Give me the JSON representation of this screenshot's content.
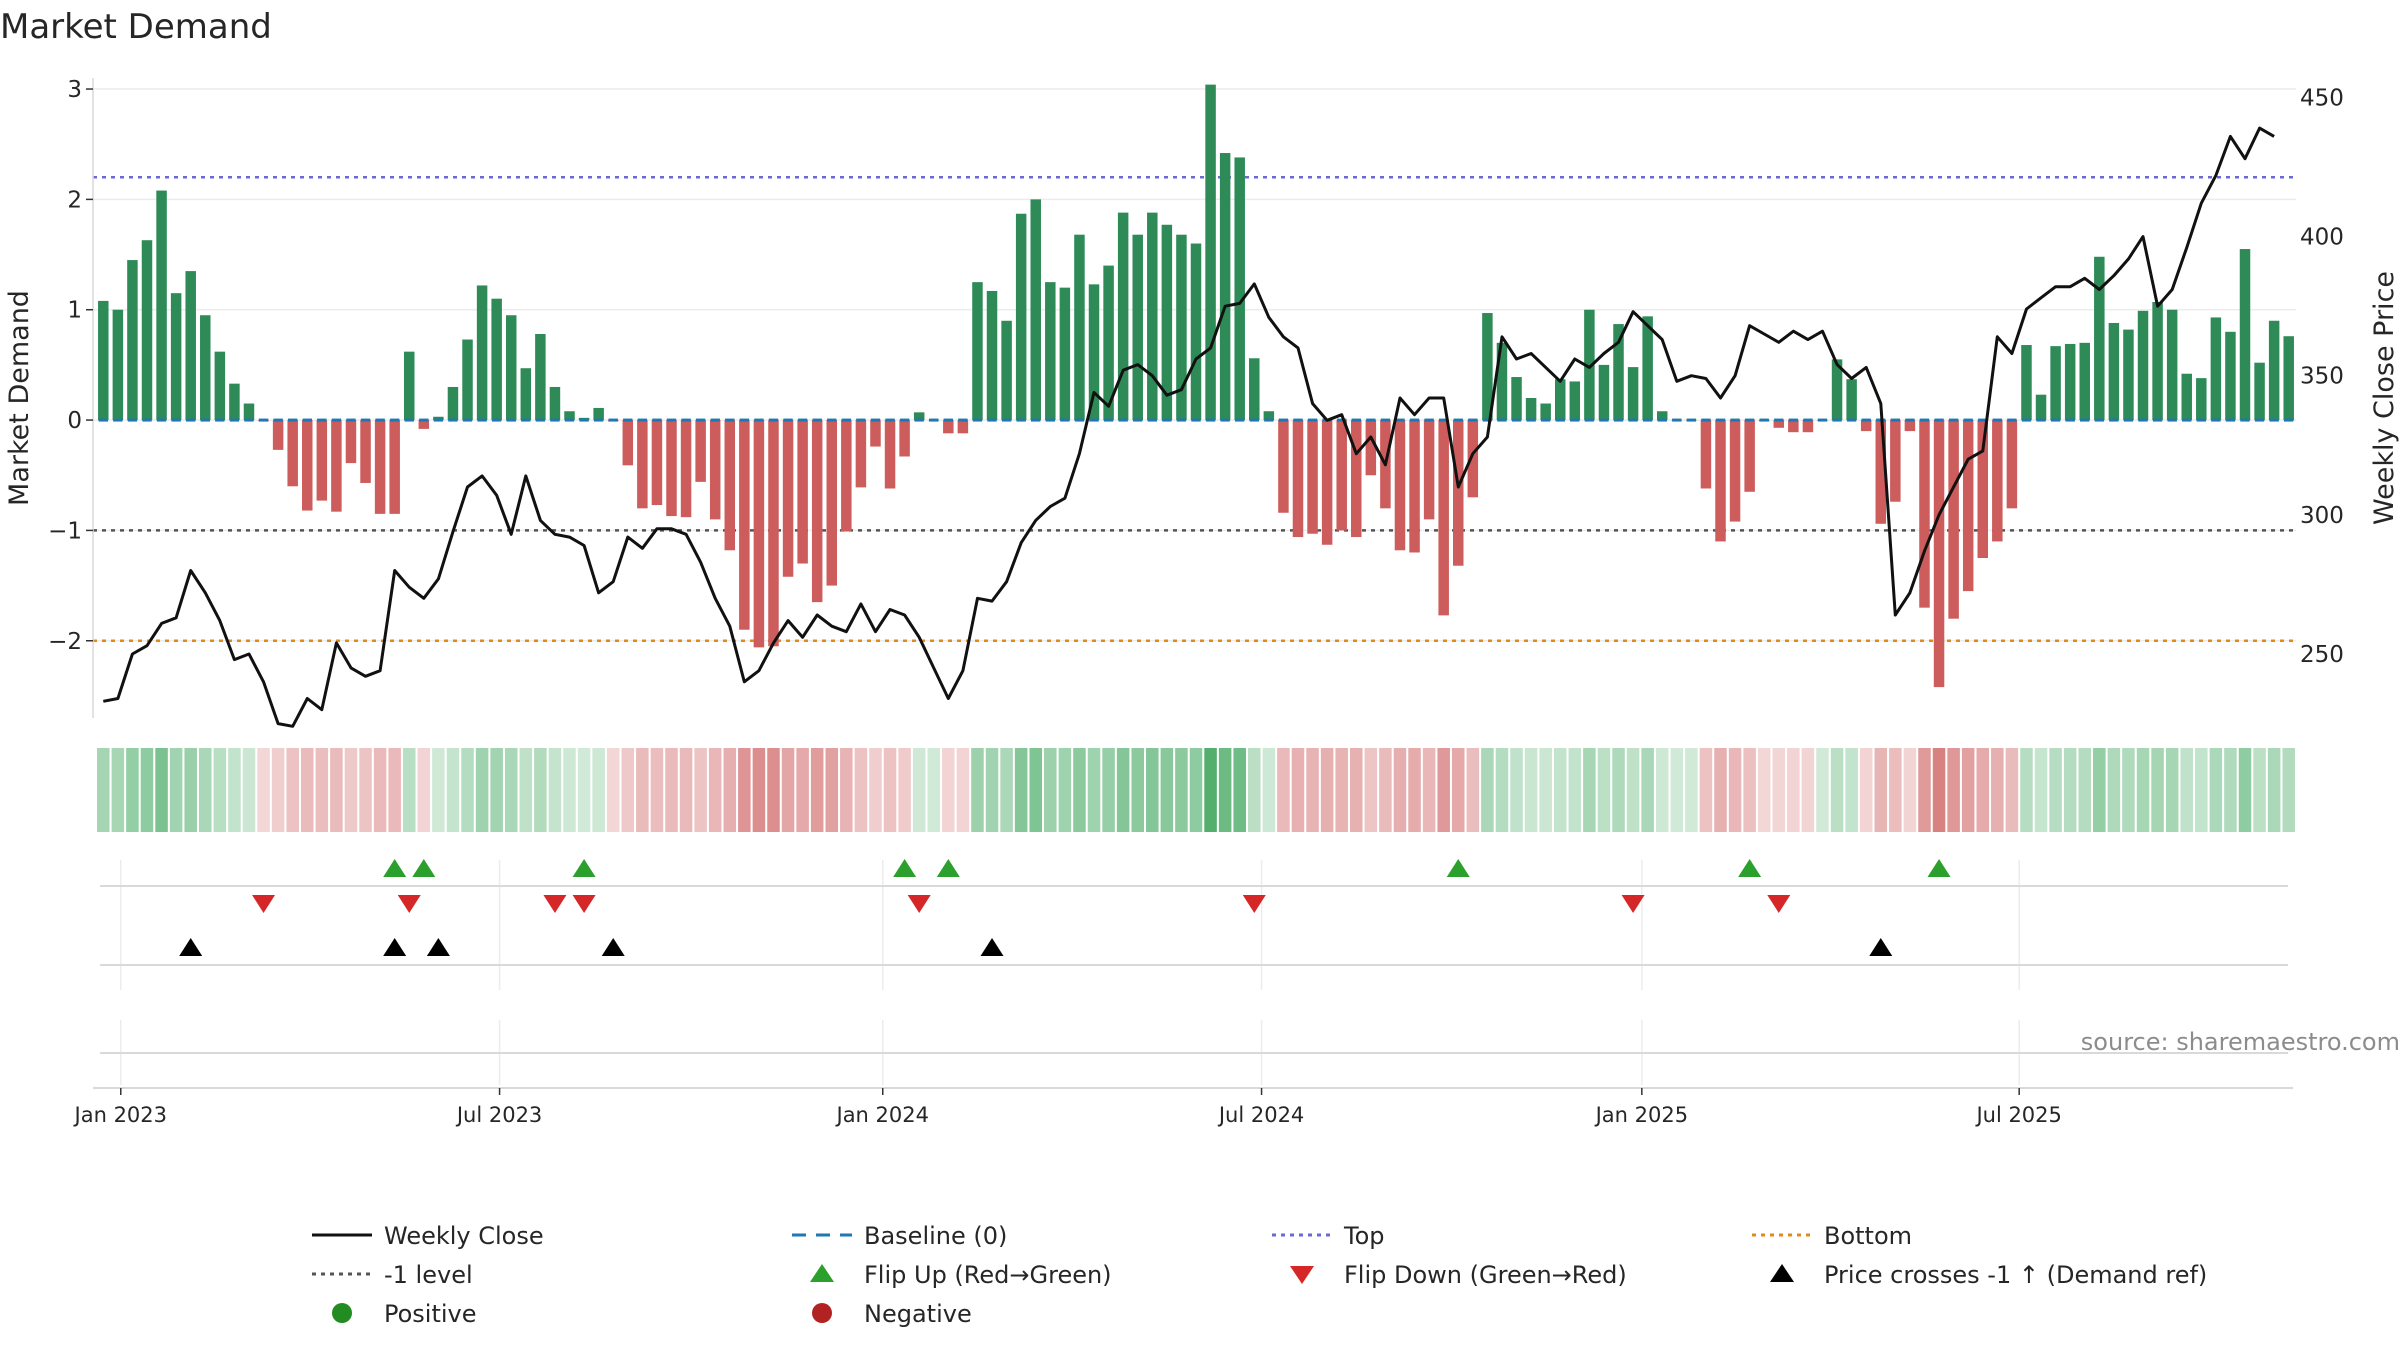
{
  "chart_data": {
    "type": "bar",
    "title": "Market Demand",
    "ylabel": "Market Demand",
    "y2label": "Weekly Close Price",
    "ylim": [
      -2.7,
      3.1
    ],
    "y2lim": [
      227,
      457
    ],
    "yticks": [
      -2,
      -1,
      0,
      1,
      2,
      3
    ],
    "y2ticks": [
      250,
      300,
      350,
      400,
      450
    ],
    "x_start_index": 0,
    "xticks": [
      {
        "label": "Jan 2023",
        "index": 1.2
      },
      {
        "label": "Jul 2023",
        "index": 27.2
      },
      {
        "label": "Jan 2024",
        "index": 53.5
      },
      {
        "label": "Jul 2024",
        "index": 79.5
      },
      {
        "label": "Jan 2025",
        "index": 105.6
      },
      {
        "label": "Jul 2025",
        "index": 131.5
      }
    ],
    "levels": {
      "baseline": 0,
      "top": 2.2,
      "minus_one": -1,
      "bottom": -2
    },
    "series": [
      {
        "name": "Market Demand",
        "values": [
          1.08,
          1.0,
          1.45,
          1.63,
          2.08,
          1.15,
          1.35,
          0.95,
          0.62,
          0.33,
          0.15,
          -0.01,
          -0.27,
          -0.6,
          -0.82,
          -0.73,
          -0.83,
          -0.39,
          -0.57,
          -0.85,
          -0.85,
          0.62,
          -0.08,
          0.03,
          0.3,
          0.73,
          1.22,
          1.1,
          0.95,
          0.47,
          0.78,
          0.3,
          0.08,
          0.02,
          0.11,
          -0.01,
          -0.41,
          -0.8,
          -0.77,
          -0.87,
          -0.88,
          -0.56,
          -0.9,
          -1.18,
          -1.9,
          -2.06,
          -2.05,
          -1.42,
          -1.3,
          -1.65,
          -1.5,
          -1.01,
          -0.61,
          -0.24,
          -0.62,
          -0.33,
          0.07,
          0.0,
          -0.12,
          -0.12,
          1.25,
          1.17,
          0.9,
          1.87,
          2.0,
          1.25,
          1.2,
          1.68,
          1.23,
          1.4,
          1.88,
          1.68,
          1.88,
          1.77,
          1.68,
          1.6,
          3.04,
          2.42,
          2.38,
          0.56,
          0.08,
          -0.84,
          -1.06,
          -1.03,
          -1.13,
          -1.0,
          -1.06,
          -0.5,
          -0.8,
          -1.18,
          -1.2,
          -0.9,
          -1.77,
          -1.32,
          -0.7,
          0.97,
          0.7,
          0.39,
          0.2,
          0.15,
          0.37,
          0.35,
          1.0,
          0.5,
          0.87,
          0.48,
          0.94,
          0.08,
          0.0,
          0.0,
          -0.62,
          -1.1,
          -0.92,
          -0.65,
          -0.01,
          -0.07,
          -0.11,
          -0.11,
          0.0,
          0.55,
          0.37,
          -0.1,
          -0.94,
          -0.74,
          -0.1,
          -1.7,
          -2.42,
          -1.8,
          -1.55,
          -1.25,
          -1.1,
          -0.8,
          0.68,
          0.23,
          0.67,
          0.69,
          0.7,
          1.48,
          0.88,
          0.82,
          0.99,
          1.07,
          1.0,
          0.42,
          0.38,
          0.93,
          0.8,
          1.55,
          0.52,
          0.9,
          0.76
        ]
      },
      {
        "name": "Weekly Close",
        "axis": "right",
        "values": [
          233,
          234,
          250,
          253,
          261,
          263,
          280,
          272,
          262,
          248,
          250,
          240,
          225,
          224,
          234,
          230,
          254,
          245,
          242,
          244,
          280,
          274,
          270,
          277,
          294,
          310,
          314,
          307,
          293,
          314,
          298,
          293,
          292,
          289,
          272,
          276,
          292,
          288,
          295,
          295,
          293,
          283,
          270,
          260,
          240,
          244,
          254,
          262,
          256,
          264,
          260,
          258,
          268,
          258,
          266,
          264,
          256,
          245,
          234,
          244,
          270,
          269,
          276,
          290,
          298,
          303,
          306,
          322,
          344,
          339,
          352,
          354,
          350,
          343,
          345,
          356,
          360,
          375,
          376,
          383,
          371,
          364,
          360,
          340,
          334,
          336,
          322,
          328,
          318,
          342,
          336,
          342,
          342,
          310,
          322,
          328,
          364,
          356,
          358,
          353,
          348,
          356,
          353,
          358,
          362,
          373,
          368,
          363,
          348,
          350,
          349,
          342,
          350,
          368,
          365,
          362,
          366,
          363,
          366,
          354,
          349,
          353,
          340,
          264,
          272,
          287,
          300,
          310,
          320,
          323,
          364,
          358,
          374,
          378,
          382,
          382,
          385,
          381,
          386,
          392,
          400,
          375,
          381,
          396,
          412,
          422,
          436,
          428,
          439,
          436
        ]
      }
    ],
    "flip_up_indices": [
      20,
      22,
      33,
      55,
      58,
      93,
      113,
      126
    ],
    "flip_down_indices": [
      11,
      21,
      31,
      33,
      56,
      79,
      105,
      115
    ],
    "price_cross_indices": [
      6,
      20,
      23,
      35,
      61,
      122
    ],
    "source_text": "source: sharemaestro.com",
    "legend": [
      {
        "label": "Weekly Close",
        "type": "line",
        "color": "#111111",
        "dash": "solid"
      },
      {
        "label": "Baseline (0)",
        "type": "line",
        "color": "#1f77b4",
        "dash": "dashed"
      },
      {
        "label": "Top",
        "type": "line",
        "color": "#6a6ad6",
        "dash": "dotted"
      },
      {
        "label": "Bottom",
        "type": "line",
        "color": "#e08a1e",
        "dash": "dotted"
      },
      {
        "label": "-1 level",
        "type": "line",
        "color": "#555555",
        "dash": "dotted"
      },
      {
        "label": "Flip Up (Red→Green)",
        "type": "triangle-up",
        "color": "#2ca02c"
      },
      {
        "label": "Flip Down (Green→Red)",
        "type": "triangle-down",
        "color": "#d62728"
      },
      {
        "label": "Price crosses -1 ↑ (Demand ref)",
        "type": "triangle-up",
        "color": "#000000"
      },
      {
        "label": "Positive",
        "type": "circle",
        "color": "#228b22"
      },
      {
        "label": "Negative",
        "type": "circle",
        "color": "#b22222"
      }
    ],
    "colors": {
      "positive": "#2e8b57",
      "negative": "#cd5c5c",
      "price": "#111111",
      "baseline": "#1f77b4",
      "top": "#6a6ad6",
      "bottom": "#e08a1e",
      "minus_one": "#555555",
      "flip_up": "#2ca02c",
      "flip_down": "#d62728",
      "cross": "#000000",
      "heat_pos": "#2e9e4f",
      "heat_neg": "#c84b4b"
    }
  }
}
